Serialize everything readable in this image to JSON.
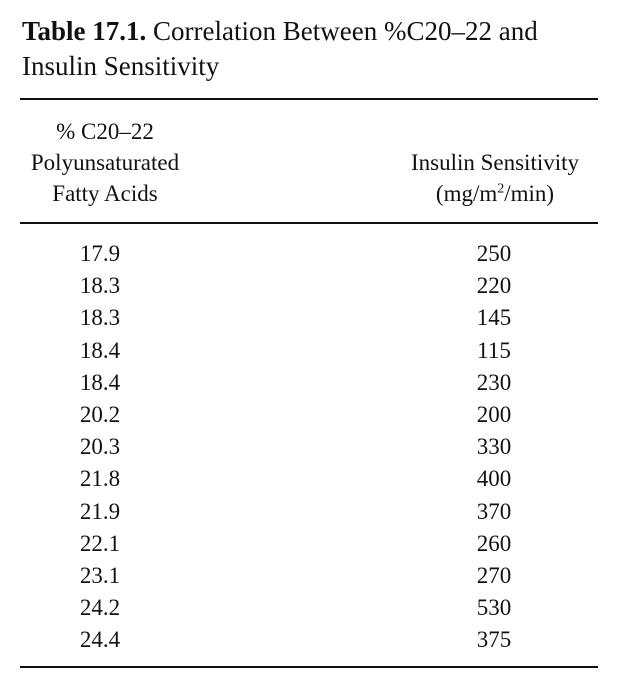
{
  "caption": {
    "label": "Table 17.1.",
    "title": "Correlation Between %C20–22 and Insulin Sensitivity"
  },
  "columns": {
    "left": {
      "line1": "% C20–22",
      "line2": "Polyunsaturated",
      "line3": "Fatty Acids"
    },
    "right": {
      "line1": "Insulin Sensitivity",
      "line2_prefix": "(mg/m",
      "line2_sup": "2",
      "line2_suffix": "/min)"
    }
  },
  "rows": [
    {
      "pufa": "17.9",
      "sensitivity": "250"
    },
    {
      "pufa": "18.3",
      "sensitivity": "220"
    },
    {
      "pufa": "18.3",
      "sensitivity": "145"
    },
    {
      "pufa": "18.4",
      "sensitivity": "115"
    },
    {
      "pufa": "18.4",
      "sensitivity": "230"
    },
    {
      "pufa": "20.2",
      "sensitivity": "200"
    },
    {
      "pufa": "20.3",
      "sensitivity": "330"
    },
    {
      "pufa": "21.8",
      "sensitivity": "400"
    },
    {
      "pufa": "21.9",
      "sensitivity": "370"
    },
    {
      "pufa": "22.1",
      "sensitivity": "260"
    },
    {
      "pufa": "23.1",
      "sensitivity": "270"
    },
    {
      "pufa": "24.2",
      "sensitivity": "530"
    },
    {
      "pufa": "24.4",
      "sensitivity": "375"
    }
  ]
}
